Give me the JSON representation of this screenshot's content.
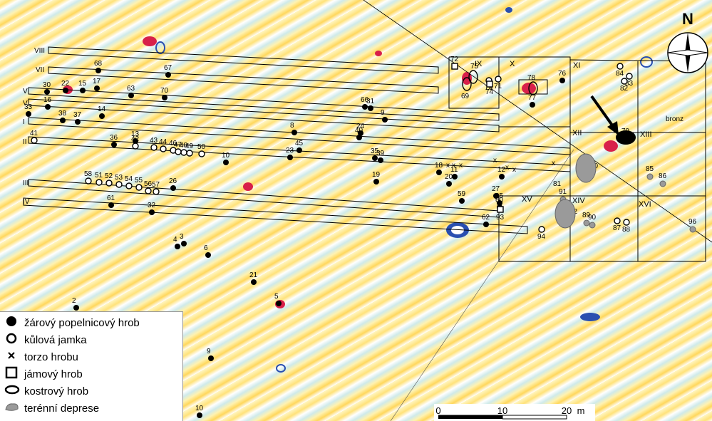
{
  "map": {
    "north_label": "N",
    "bronz_label": "bronz",
    "colors": {
      "cremation": "#000000",
      "pit": "#ffffff",
      "anomaly_red": "#d8204a",
      "anomaly_blue": "#2a4fb0",
      "depression": "#9a9a9a"
    },
    "trenches": [
      "VIII",
      "VII",
      "VI",
      "V",
      "I",
      "II",
      "III",
      "IV"
    ],
    "sections": [
      "IX",
      "X",
      "XI",
      "XII",
      "XIII",
      "XIV",
      "XV",
      "XVI"
    ],
    "cremations": [
      "68",
      "67",
      "22",
      "30",
      "15",
      "17",
      "63",
      "70",
      "16",
      "33",
      "38",
      "37",
      "14",
      "36",
      "13",
      "8",
      "24",
      "40",
      "31",
      "9",
      "66",
      "45",
      "35",
      "39",
      "23",
      "10",
      "18",
      "11",
      "19",
      "12",
      "26",
      "61",
      "32",
      "27",
      "95",
      "60",
      "59",
      "62",
      "76",
      "77",
      "79",
      "4",
      "3",
      "6",
      "21",
      "5",
      "2",
      "9",
      "20",
      "10"
    ],
    "postholes": [
      "41",
      "43",
      "44",
      "46",
      "47",
      "48",
      "49",
      "50",
      "42",
      "58",
      "51",
      "52",
      "53",
      "54",
      "55",
      "56",
      "57",
      "84",
      "83",
      "82",
      "87",
      "88",
      "94",
      "73",
      "71"
    ],
    "torso_graves": [
      "x",
      "x",
      "x",
      "x",
      "x",
      "x",
      "x",
      "81"
    ],
    "pit_graves": [
      "72",
      "74",
      "93"
    ],
    "skeletal_graves": [
      "75",
      "69",
      "78"
    ],
    "depressions": [
      "80",
      "85",
      "86",
      "91",
      "92",
      "89",
      "90",
      "96"
    ]
  },
  "legend": {
    "items": [
      {
        "symbol": "filled-circle",
        "label": "žárový popelnicový hrob"
      },
      {
        "symbol": "open-circle",
        "label": "kůlová jamka"
      },
      {
        "symbol": "cross",
        "label": "torzo hrobu"
      },
      {
        "symbol": "square",
        "label": "jámový hrob"
      },
      {
        "symbol": "ellipse",
        "label": "kostrový hrob"
      },
      {
        "symbol": "gray-blob",
        "label": "terénní deprese"
      }
    ]
  },
  "scale": {
    "ticks": [
      "0",
      "10",
      "20"
    ],
    "unit": "m"
  }
}
